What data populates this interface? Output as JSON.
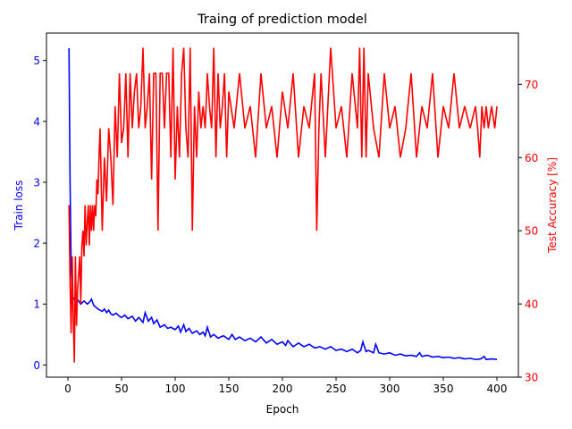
{
  "chart_data": {
    "type": "line",
    "title": "Traing of prediction model",
    "xlabel": "Epoch",
    "ylabel_left": "Train loss",
    "ylabel_right": "Test Accuracy [%]",
    "xlim": [
      -20,
      420
    ],
    "ylim_left": [
      -0.2,
      5.45
    ],
    "ylim_right": [
      30,
      77
    ],
    "xticks": [
      "0",
      "50",
      "100",
      "150",
      "200",
      "250",
      "300",
      "350",
      "400"
    ],
    "yticks_left": [
      "0",
      "1",
      "2",
      "3",
      "4",
      "5"
    ],
    "yticks_right": [
      "30",
      "40",
      "50",
      "60",
      "70"
    ],
    "grid": false,
    "colors": {
      "left": "#0000ff",
      "right": "#ff0000"
    },
    "series": [
      {
        "axis": "left",
        "x": [
          1,
          2,
          3,
          4,
          5,
          6,
          8,
          10,
          12,
          15,
          18,
          20,
          22,
          24,
          26,
          28,
          30,
          32,
          34,
          36,
          38,
          40,
          42,
          45,
          48,
          50,
          53,
          56,
          60,
          63,
          66,
          70,
          72,
          75,
          78,
          80,
          83,
          86,
          90,
          93,
          96,
          100,
          103,
          105,
          108,
          110,
          113,
          116,
          120,
          123,
          126,
          128,
          130,
          133,
          136,
          140,
          145,
          150,
          153,
          156,
          160,
          165,
          170,
          175,
          180,
          185,
          190,
          195,
          200,
          203,
          205,
          210,
          215,
          220,
          225,
          230,
          235,
          240,
          245,
          250,
          255,
          260,
          265,
          270,
          273,
          275,
          278,
          280,
          285,
          287,
          290,
          295,
          300,
          305,
          310,
          315,
          320,
          325,
          328,
          330,
          335,
          340,
          345,
          350,
          355,
          360,
          365,
          370,
          375,
          380,
          385,
          388,
          390,
          395,
          400
        ],
        "values": [
          5.2,
          3.0,
          1.6,
          1.2,
          1.1,
          1.08,
          1.1,
          1.05,
          1.0,
          1.05,
          1.0,
          1.03,
          1.08,
          0.98,
          0.95,
          0.92,
          0.9,
          0.88,
          0.92,
          0.86,
          0.9,
          0.84,
          0.82,
          0.85,
          0.8,
          0.78,
          0.82,
          0.76,
          0.8,
          0.72,
          0.78,
          0.7,
          0.86,
          0.72,
          0.78,
          0.68,
          0.74,
          0.62,
          0.66,
          0.6,
          0.62,
          0.58,
          0.64,
          0.54,
          0.66,
          0.55,
          0.6,
          0.52,
          0.56,
          0.5,
          0.54,
          0.48,
          0.62,
          0.46,
          0.5,
          0.44,
          0.48,
          0.42,
          0.5,
          0.42,
          0.46,
          0.4,
          0.44,
          0.38,
          0.46,
          0.36,
          0.42,
          0.34,
          0.38,
          0.32,
          0.4,
          0.3,
          0.36,
          0.3,
          0.34,
          0.28,
          0.3,
          0.26,
          0.3,
          0.24,
          0.26,
          0.22,
          0.26,
          0.2,
          0.24,
          0.38,
          0.22,
          0.24,
          0.2,
          0.34,
          0.2,
          0.18,
          0.2,
          0.16,
          0.18,
          0.15,
          0.16,
          0.14,
          0.2,
          0.14,
          0.16,
          0.13,
          0.14,
          0.12,
          0.13,
          0.11,
          0.12,
          0.1,
          0.11,
          0.09,
          0.1,
          0.14,
          0.09,
          0.1,
          0.09
        ]
      },
      {
        "axis": "right",
        "x": [
          1,
          2,
          3,
          4,
          5,
          6,
          7,
          8,
          9,
          10,
          11,
          12,
          13,
          14,
          15,
          16,
          17,
          18,
          19,
          20,
          21,
          22,
          23,
          24,
          25,
          26,
          27,
          28,
          29,
          30,
          32,
          34,
          36,
          38,
          40,
          42,
          44,
          46,
          48,
          50,
          52,
          54,
          56,
          58,
          60,
          62,
          64,
          66,
          68,
          70,
          72,
          74,
          76,
          78,
          80,
          82,
          84,
          86,
          88,
          90,
          92,
          94,
          96,
          98,
          100,
          102,
          104,
          106,
          108,
          110,
          112,
          114,
          116,
          118,
          120,
          122,
          124,
          126,
          128,
          130,
          132,
          134,
          136,
          138,
          140,
          142,
          144,
          146,
          148,
          150,
          155,
          160,
          165,
          170,
          175,
          180,
          185,
          190,
          195,
          200,
          205,
          210,
          215,
          220,
          225,
          230,
          232,
          234,
          236,
          240,
          245,
          250,
          255,
          260,
          265,
          270,
          272,
          274,
          276,
          278,
          280,
          285,
          290,
          295,
          300,
          305,
          310,
          315,
          320,
          325,
          330,
          335,
          340,
          345,
          350,
          355,
          360,
          365,
          370,
          375,
          380,
          382,
          384,
          386,
          388,
          390,
          392,
          395,
          398,
          400
        ],
        "values": [
          53.5,
          43,
          36,
          46.5,
          38,
          32,
          46.5,
          37,
          42,
          44,
          46.5,
          40,
          48,
          50,
          46.5,
          53.5,
          48,
          51,
          53.5,
          48,
          53.5,
          50,
          53.5,
          50,
          53.5,
          52,
          57,
          55,
          60,
          64,
          50,
          60,
          54,
          64,
          60,
          53.5,
          67,
          60,
          71.5,
          62,
          64,
          71.5,
          60,
          71.5,
          64,
          69,
          71.5,
          64,
          67,
          75,
          64,
          67,
          71.5,
          57,
          71.5,
          71.5,
          50,
          71.5,
          71.5,
          64,
          71.5,
          71.5,
          60,
          75,
          57,
          67,
          60,
          71.5,
          75,
          64,
          60,
          75,
          50,
          67,
          60,
          69,
          64,
          67,
          64,
          71.5,
          67,
          64,
          75,
          60,
          71.5,
          64,
          67,
          71.5,
          60,
          69,
          64,
          71.5,
          64,
          67,
          60,
          71.5,
          64,
          67,
          60,
          69,
          64,
          71.5,
          60,
          67,
          64,
          71.5,
          50,
          64,
          71.5,
          60,
          75,
          64,
          67,
          60,
          71.5,
          64,
          75,
          60,
          75,
          60,
          71.5,
          64,
          60,
          71.5,
          64,
          67,
          60,
          64,
          71.5,
          60,
          67,
          64,
          71.5,
          60,
          67,
          64,
          71.5,
          64,
          67,
          64,
          67,
          64,
          60,
          67,
          64,
          67,
          64,
          67,
          64,
          67
        ]
      }
    ]
  }
}
